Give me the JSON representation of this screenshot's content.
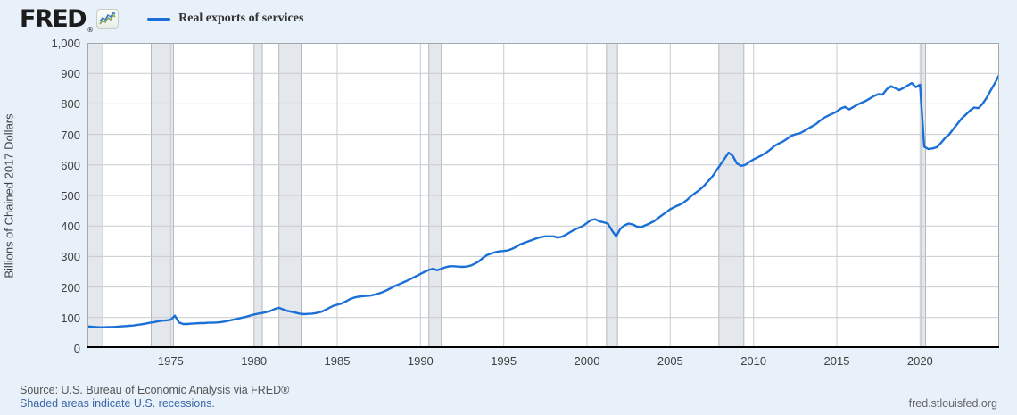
{
  "header": {
    "logo_text": "FRED",
    "logo_registered": "®",
    "legend": {
      "label": "Real exports of services"
    }
  },
  "y_axis": {
    "title": "Billions of Chained 2017 Dollars",
    "ticks": [
      {
        "label": "0",
        "value": 0
      },
      {
        "label": "100",
        "value": 100
      },
      {
        "label": "200",
        "value": 200
      },
      {
        "label": "300",
        "value": 300
      },
      {
        "label": "400",
        "value": 400
      },
      {
        "label": "500",
        "value": 500
      },
      {
        "label": "600",
        "value": 600
      },
      {
        "label": "700",
        "value": 700
      },
      {
        "label": "800",
        "value": 800
      },
      {
        "label": "900",
        "value": 900
      },
      {
        "label": "1,000",
        "value": 1000
      }
    ]
  },
  "x_axis": {
    "ticks": [
      {
        "label": "1975",
        "value": 1975
      },
      {
        "label": "1980",
        "value": 1980
      },
      {
        "label": "1985",
        "value": 1985
      },
      {
        "label": "1990",
        "value": 1990
      },
      {
        "label": "1995",
        "value": 1995
      },
      {
        "label": "2000",
        "value": 2000
      },
      {
        "label": "2005",
        "value": 2005
      },
      {
        "label": "2010",
        "value": 2010
      },
      {
        "label": "2015",
        "value": 2015
      },
      {
        "label": "2020",
        "value": 2020
      }
    ]
  },
  "footer": {
    "source": "Source: U.S. Bureau of Economic Analysis via FRED®",
    "recession_note": "Shaded areas indicate U.S. recessions.",
    "site": "fred.stlouisfed.org"
  },
  "chart_data": {
    "type": "line",
    "title": "Real exports of services",
    "ylabel": "Billions of Chained 2017 Dollars",
    "x_range": [
      1970,
      2024.75
    ],
    "y_range": [
      0,
      1000
    ],
    "grid": true,
    "legend_position": "top-left",
    "frequency": "quarterly",
    "series": [
      {
        "name": "Real exports of services",
        "start": 1970,
        "step": 0.25,
        "values": [
          71,
          70,
          69,
          68,
          68,
          69,
          69,
          70,
          71,
          72,
          73,
          74,
          76,
          78,
          80,
          83,
          85,
          88,
          90,
          91,
          93,
          106,
          84,
          79,
          79,
          80,
          81,
          82,
          82,
          83,
          83,
          84,
          85,
          87,
          90,
          93,
          96,
          99,
          102,
          106,
          110,
          113,
          115,
          118,
          122,
          128,
          132,
          127,
          122,
          119,
          116,
          113,
          111,
          112,
          113,
          115,
          118,
          124,
          131,
          138,
          142,
          146,
          152,
          160,
          165,
          168,
          170,
          171,
          172,
          175,
          179,
          184,
          190,
          197,
          204,
          210,
          216,
          222,
          229,
          236,
          243,
          250,
          256,
          260,
          255,
          260,
          265,
          268,
          268,
          267,
          266,
          267,
          270,
          276,
          284,
          295,
          305,
          310,
          314,
          317,
          318,
          320,
          325,
          332,
          340,
          345,
          350,
          355,
          360,
          364,
          366,
          366,
          366,
          362,
          365,
          372,
          380,
          388,
          394,
          400,
          410,
          420,
          422,
          415,
          412,
          408,
          385,
          366,
          390,
          402,
          408,
          405,
          398,
          396,
          402,
          408,
          415,
          425,
          435,
          445,
          455,
          462,
          468,
          475,
          485,
          498,
          508,
          518,
          530,
          545,
          560,
          580,
          600,
          620,
          640,
          630,
          605,
          597,
          600,
          610,
          618,
          625,
          632,
          640,
          650,
          662,
          670,
          676,
          685,
          695,
          700,
          703,
          710,
          718,
          726,
          734,
          745,
          755,
          762,
          768,
          775,
          785,
          790,
          782,
          790,
          798,
          804,
          810,
          818,
          826,
          832,
          830,
          848,
          858,
          852,
          845,
          852,
          860,
          868,
          855,
          863,
          660,
          652,
          654,
          658,
          672,
          688,
          700,
          718,
          735,
          752,
          765,
          778,
          788,
          786,
          800,
          820,
          845,
          868,
          895
        ]
      }
    ],
    "recessions": [
      [
        1969.92,
        1970.92
      ],
      [
        1973.83,
        1975.17
      ],
      [
        1980.0,
        1980.5
      ],
      [
        1981.5,
        1982.83
      ],
      [
        1990.5,
        1991.25
      ],
      [
        2001.17,
        2001.83
      ],
      [
        2007.92,
        2009.42
      ],
      [
        2020.08,
        2020.33
      ]
    ],
    "colors": {
      "line": "#1a70d6",
      "recession_fill": "#e4e8ec",
      "recession_edge": "#b3b9bf",
      "grid": "#c7cbcf",
      "plot_border": "#a2a8ad",
      "axis_line": "#000000",
      "background": "#e8f1fa"
    }
  }
}
